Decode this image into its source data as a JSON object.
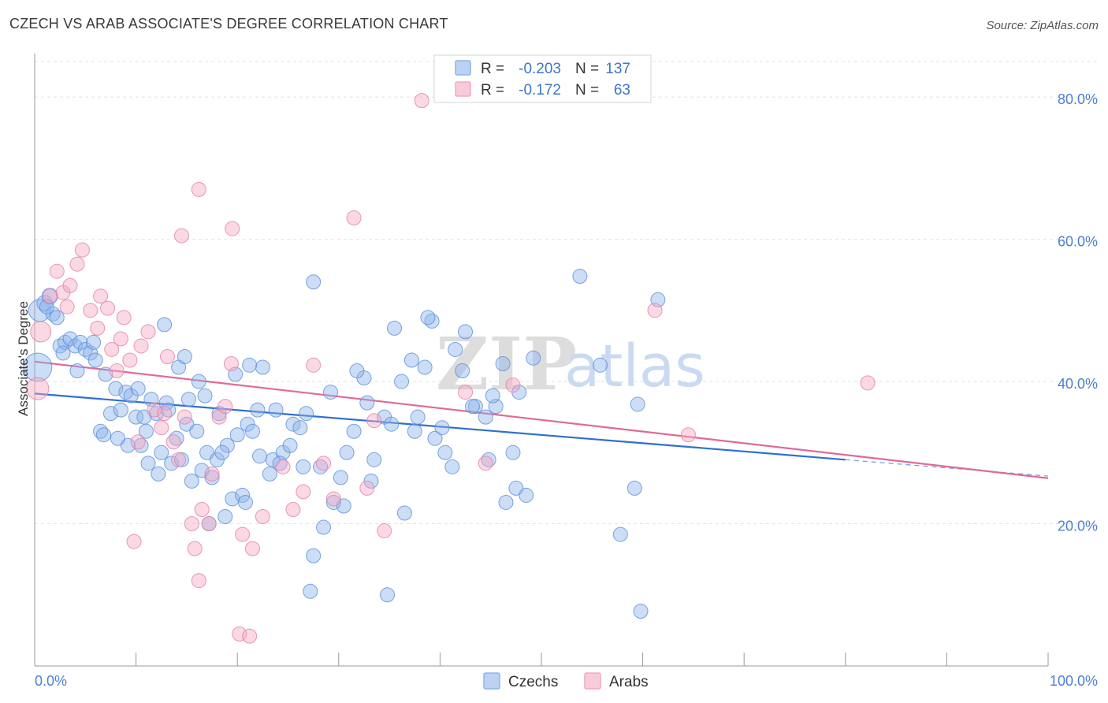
{
  "title": "CZECH VS ARAB ASSOCIATE'S DEGREE CORRELATION CHART",
  "source": "Source: ZipAtlas.com",
  "watermark": {
    "zip": "ZIP",
    "atlas": "atlas"
  },
  "chart_data": {
    "type": "scatter",
    "title": "CZECH VS ARAB ASSOCIATE'S DEGREE CORRELATION CHART",
    "ylabel": "Associate's Degree",
    "xlabel": "",
    "xlim": [
      0,
      100
    ],
    "ylim": [
      0,
      85
    ],
    "x_tick_labels": {
      "left": "0.0%",
      "right": "100.0%"
    },
    "y_ticks": [
      {
        "value": 20,
        "label": "20.0%"
      },
      {
        "value": 40,
        "label": "40.0%"
      },
      {
        "value": 60,
        "label": "60.0%"
      },
      {
        "value": 80,
        "label": "80.0%"
      }
    ],
    "grid": true,
    "legend_placement": "top-center",
    "stats_legend": [
      {
        "r_label": "R =",
        "r_value": "-0.203",
        "n_label": "N =",
        "n_value": "137",
        "color": "#8fb4ea"
      },
      {
        "r_label": "R =",
        "r_value": "-0.172",
        "n_label": "N =",
        "n_value": "63",
        "color": "#f4a8c3"
      }
    ],
    "series": [
      {
        "name": "Czechs",
        "color": "#8fb4ea",
        "stroke": "#5b8fd9",
        "trend": {
          "x0": 0,
          "y0": 38.3,
          "x1": 80,
          "y1": 29.0,
          "dash_to": 100,
          "dash_y": 26.7,
          "color": "#2f6fd1"
        },
        "points": [
          [
            0.3,
            42,
            18
          ],
          [
            0.5,
            50,
            14
          ],
          [
            1.0,
            51,
            10
          ],
          [
            1.5,
            52,
            10
          ],
          [
            1.8,
            49.5,
            9
          ],
          [
            2.2,
            49,
            9
          ],
          [
            2.5,
            45,
            9
          ],
          [
            3,
            45.5,
            9
          ],
          [
            3.5,
            46,
            9
          ],
          [
            4,
            45,
            9
          ],
          [
            4.5,
            45.5,
            9
          ],
          [
            5,
            44.5,
            9
          ],
          [
            5.5,
            44,
            9
          ],
          [
            6,
            43,
            9
          ],
          [
            7,
            41,
            9
          ],
          [
            8,
            39,
            9
          ],
          [
            9,
            38.5,
            9
          ],
          [
            10,
            35,
            9
          ],
          [
            11,
            33,
            9
          ],
          [
            12,
            35.5,
            9
          ],
          [
            13,
            37,
            9
          ],
          [
            14,
            32,
            9
          ],
          [
            15,
            34,
            9
          ],
          [
            16,
            33,
            9
          ],
          [
            17,
            30,
            9
          ],
          [
            18,
            29,
            9
          ],
          [
            19,
            31,
            9
          ],
          [
            20,
            32.5,
            9
          ],
          [
            21,
            34,
            9
          ],
          [
            22,
            36,
            9
          ],
          [
            5.8,
            45.5,
            9
          ],
          [
            6.5,
            33,
            9
          ],
          [
            7.5,
            35.5,
            9
          ],
          [
            8.5,
            36,
            9
          ],
          [
            9.5,
            38,
            9
          ],
          [
            10.5,
            31,
            9
          ],
          [
            11.5,
            37.5,
            9
          ],
          [
            12.5,
            30,
            9
          ],
          [
            13.5,
            28.5,
            9
          ],
          [
            14.5,
            29,
            9
          ],
          [
            15.5,
            26,
            9
          ],
          [
            16.5,
            27.5,
            9
          ],
          [
            17.5,
            26.5,
            9
          ],
          [
            18.5,
            30,
            9
          ],
          [
            19.5,
            23.5,
            9
          ],
          [
            20.5,
            24,
            9
          ],
          [
            21.5,
            33,
            9
          ],
          [
            22.5,
            42,
            9
          ],
          [
            23.5,
            29,
            9
          ],
          [
            24.5,
            30,
            9
          ],
          [
            25.5,
            34,
            9
          ],
          [
            26.5,
            28,
            9
          ],
          [
            27.5,
            15.5,
            9
          ],
          [
            28.5,
            19.5,
            9
          ],
          [
            29.5,
            23,
            9
          ],
          [
            30.5,
            22.5,
            9
          ],
          [
            31.5,
            33,
            9
          ],
          [
            32.5,
            40.5,
            9
          ],
          [
            33.5,
            29,
            9
          ],
          [
            34.5,
            35,
            9
          ],
          [
            35.5,
            47.5,
            9
          ],
          [
            36.5,
            21.5,
            9
          ],
          [
            37.5,
            33,
            9
          ],
          [
            38.5,
            42,
            9
          ],
          [
            39.5,
            32,
            9
          ],
          [
            40.5,
            30,
            9
          ],
          [
            41.5,
            44.5,
            9
          ],
          [
            42.5,
            47,
            9
          ],
          [
            43.5,
            36.5,
            9
          ],
          [
            44.5,
            35,
            9
          ],
          [
            45.5,
            36.5,
            9
          ],
          [
            46.5,
            23,
            9
          ],
          [
            47.5,
            25,
            9
          ],
          [
            48.5,
            24,
            9
          ],
          [
            12.8,
            48,
            9
          ],
          [
            14.2,
            42,
            9
          ],
          [
            16.2,
            40,
            9
          ],
          [
            18.2,
            35.5,
            9
          ],
          [
            19.8,
            41,
            9
          ],
          [
            21.2,
            42.3,
            9
          ],
          [
            23.8,
            36,
            9
          ],
          [
            25.2,
            31,
            9
          ],
          [
            26.8,
            35.5,
            9
          ],
          [
            27.2,
            10.5,
            9
          ],
          [
            29.2,
            38.5,
            9
          ],
          [
            30.8,
            30,
            9
          ],
          [
            31.8,
            41.5,
            9
          ],
          [
            32.8,
            37,
            9
          ],
          [
            34.8,
            10,
            9
          ],
          [
            36.2,
            40,
            9
          ],
          [
            37.8,
            35,
            9
          ],
          [
            39.2,
            48.5,
            9
          ],
          [
            41.2,
            28,
            9
          ],
          [
            43.2,
            36.5,
            9
          ],
          [
            44.8,
            29,
            9
          ],
          [
            46.2,
            42.5,
            9
          ],
          [
            47.8,
            38.5,
            9
          ],
          [
            49.2,
            43.3,
            9
          ],
          [
            53.8,
            54.8,
            9
          ],
          [
            55.8,
            42.3,
            9
          ],
          [
            57.8,
            18.5,
            9
          ],
          [
            59.2,
            25,
            9
          ],
          [
            59.5,
            36.8,
            9
          ],
          [
            61.5,
            51.5,
            9
          ],
          [
            59.8,
            7.7,
            9
          ],
          [
            27.5,
            54,
            9
          ],
          [
            22.2,
            29.5,
            9
          ],
          [
            17.2,
            20,
            9
          ],
          [
            24.2,
            28.5,
            9
          ],
          [
            11.2,
            28.5,
            9
          ],
          [
            12.2,
            27,
            9
          ],
          [
            13.2,
            36,
            9
          ],
          [
            15.2,
            37.5,
            9
          ],
          [
            9.2,
            31,
            9
          ],
          [
            8.2,
            32,
            9
          ],
          [
            10.2,
            39,
            9
          ],
          [
            28.2,
            28,
            9
          ],
          [
            33.2,
            26,
            9
          ],
          [
            38.8,
            49,
            9
          ],
          [
            42.2,
            41.5,
            9
          ],
          [
            45.2,
            38,
            9
          ],
          [
            47.2,
            30,
            9
          ],
          [
            18.8,
            21,
            9
          ],
          [
            20.8,
            23,
            9
          ],
          [
            23.2,
            27,
            9
          ],
          [
            26.2,
            33.5,
            9
          ],
          [
            30.2,
            26.5,
            9
          ],
          [
            35.2,
            34,
            9
          ],
          [
            37.2,
            43,
            9
          ],
          [
            40.2,
            33.5,
            9
          ],
          [
            14.8,
            43.5,
            9
          ],
          [
            16.8,
            38,
            9
          ],
          [
            10.8,
            35,
            9
          ],
          [
            6.8,
            32.5,
            9
          ],
          [
            4.2,
            41.5,
            9
          ],
          [
            2.8,
            44,
            9
          ],
          [
            1.2,
            50.5,
            9
          ]
        ]
      },
      {
        "name": "Arabs",
        "color": "#f4a8c3",
        "stroke": "#e57fa5",
        "trend": {
          "x0": 0,
          "y0": 42.8,
          "x1": 100,
          "y1": 26.4,
          "color": "#e06a96"
        },
        "points": [
          [
            0.3,
            39,
            14
          ],
          [
            0.6,
            47,
            13
          ],
          [
            1.5,
            52,
            9
          ],
          [
            2.2,
            55.5,
            9
          ],
          [
            2.8,
            52.5,
            9
          ],
          [
            3.5,
            53.5,
            9
          ],
          [
            4.2,
            56.5,
            9
          ],
          [
            4.7,
            58.5,
            9
          ],
          [
            5.5,
            50,
            9
          ],
          [
            6.2,
            47.5,
            9
          ],
          [
            6.5,
            52,
            9
          ],
          [
            7.2,
            50.3,
            9
          ],
          [
            7.6,
            44.5,
            9
          ],
          [
            8.1,
            41.5,
            9
          ],
          [
            8.8,
            49,
            9
          ],
          [
            9.4,
            43,
            9
          ],
          [
            9.8,
            17.5,
            9
          ],
          [
            10.5,
            45,
            9
          ],
          [
            11.2,
            47,
            9
          ],
          [
            11.8,
            36,
            9
          ],
          [
            12.5,
            33.5,
            9
          ],
          [
            13.1,
            43.5,
            9
          ],
          [
            13.7,
            31.5,
            9
          ],
          [
            14.2,
            29,
            9
          ],
          [
            14.8,
            35,
            9
          ],
          [
            14.5,
            60.5,
            9
          ],
          [
            15.5,
            20,
            9
          ],
          [
            16.5,
            22,
            9
          ],
          [
            17.5,
            27,
            9
          ],
          [
            15.8,
            16.5,
            9
          ],
          [
            16.2,
            12,
            9
          ],
          [
            17.2,
            20,
            9
          ],
          [
            18.2,
            35,
            9
          ],
          [
            18.8,
            36.5,
            9
          ],
          [
            19.4,
            42.5,
            9
          ],
          [
            20.5,
            18.5,
            9
          ],
          [
            21.5,
            16.5,
            9
          ],
          [
            22.5,
            21,
            9
          ],
          [
            24.5,
            28,
            9
          ],
          [
            25.5,
            22,
            9
          ],
          [
            26.5,
            24.5,
            9
          ],
          [
            27.5,
            42.3,
            9
          ],
          [
            28.5,
            28.5,
            9
          ],
          [
            29.5,
            23.5,
            9
          ],
          [
            31.5,
            63,
            9
          ],
          [
            33.5,
            34.5,
            9
          ],
          [
            34.5,
            19,
            9
          ],
          [
            19.5,
            61.5,
            9
          ],
          [
            16.2,
            67,
            9
          ],
          [
            20.2,
            4.5,
            9
          ],
          [
            21.2,
            4.2,
            9
          ],
          [
            38.2,
            79.5,
            9
          ],
          [
            42.5,
            38.5,
            9
          ],
          [
            44.5,
            28.5,
            9
          ],
          [
            47.2,
            39.5,
            9
          ],
          [
            61.2,
            50,
            9
          ],
          [
            64.5,
            32.5,
            9
          ],
          [
            82.2,
            39.8,
            9
          ],
          [
            32.8,
            25,
            9
          ],
          [
            3.2,
            50.5,
            9
          ],
          [
            10.2,
            31.5,
            9
          ],
          [
            12.8,
            35.5,
            9
          ],
          [
            8.5,
            46,
            9
          ]
        ]
      }
    ]
  },
  "bottom_legend": [
    {
      "label": "Czechs",
      "color": "#8fb4ea"
    },
    {
      "label": "Arabs",
      "color": "#f4a8c3"
    }
  ]
}
